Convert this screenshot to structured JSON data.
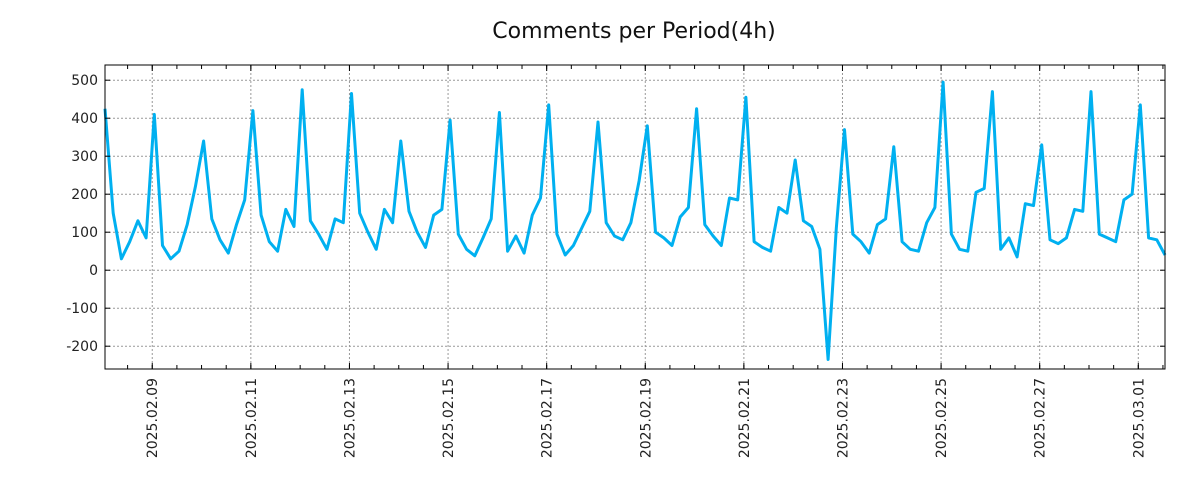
{
  "chart_data": {
    "type": "line",
    "title": "Comments per Period(4h)",
    "xlabel": "",
    "ylabel": "",
    "x_start": "2025-02-08 01:00",
    "interval_hours": 4,
    "ylim": [
      -260,
      540
    ],
    "yticks": [
      -200,
      -100,
      0,
      100,
      200,
      300,
      400,
      500
    ],
    "ytick_labels": [
      "-200",
      "-100",
      "0",
      "100",
      "200",
      "300",
      "400",
      "500"
    ],
    "xticks": [
      {
        "label": "2025.02.09",
        "hours_from_start": 23
      },
      {
        "label": "2025.02.11",
        "hours_from_start": 71
      },
      {
        "label": "2025.02.13",
        "hours_from_start": 119
      },
      {
        "label": "2025.02.15",
        "hours_from_start": 167
      },
      {
        "label": "2025.02.17",
        "hours_from_start": 215
      },
      {
        "label": "2025.02.19",
        "hours_from_start": 263
      },
      {
        "label": "2025.02.21",
        "hours_from_start": 311
      },
      {
        "label": "2025.02.23",
        "hours_from_start": 359
      },
      {
        "label": "2025.02.25",
        "hours_from_start": 407
      },
      {
        "label": "2025.02.27",
        "hours_from_start": 455
      },
      {
        "label": "2025.03.01",
        "hours_from_start": 503
      }
    ],
    "grid": true,
    "line_color": "#00b0f0",
    "values": [
      425,
      150,
      30,
      75,
      130,
      85,
      410,
      65,
      30,
      50,
      120,
      220,
      340,
      135,
      80,
      45,
      120,
      185,
      420,
      145,
      75,
      50,
      160,
      115,
      475,
      130,
      95,
      55,
      135,
      125,
      465,
      150,
      100,
      55,
      160,
      125,
      340,
      155,
      100,
      60,
      145,
      160,
      395,
      95,
      55,
      38,
      85,
      135,
      415,
      50,
      90,
      45,
      145,
      190,
      435,
      95,
      40,
      65,
      110,
      155,
      390,
      125,
      90,
      80,
      125,
      235,
      380,
      100,
      85,
      65,
      140,
      165,
      425,
      120,
      90,
      65,
      190,
      185,
      455,
      75,
      60,
      50,
      165,
      150,
      290,
      130,
      115,
      55,
      -235,
      110,
      370,
      95,
      75,
      45,
      120,
      135,
      325,
      75,
      55,
      50,
      125,
      165,
      495,
      95,
      55,
      50,
      205,
      215,
      470,
      55,
      85,
      35,
      175,
      170,
      330,
      80,
      70,
      85,
      160,
      155,
      470,
      95,
      85,
      75,
      185,
      200,
      435,
      85,
      80,
      40
    ]
  }
}
